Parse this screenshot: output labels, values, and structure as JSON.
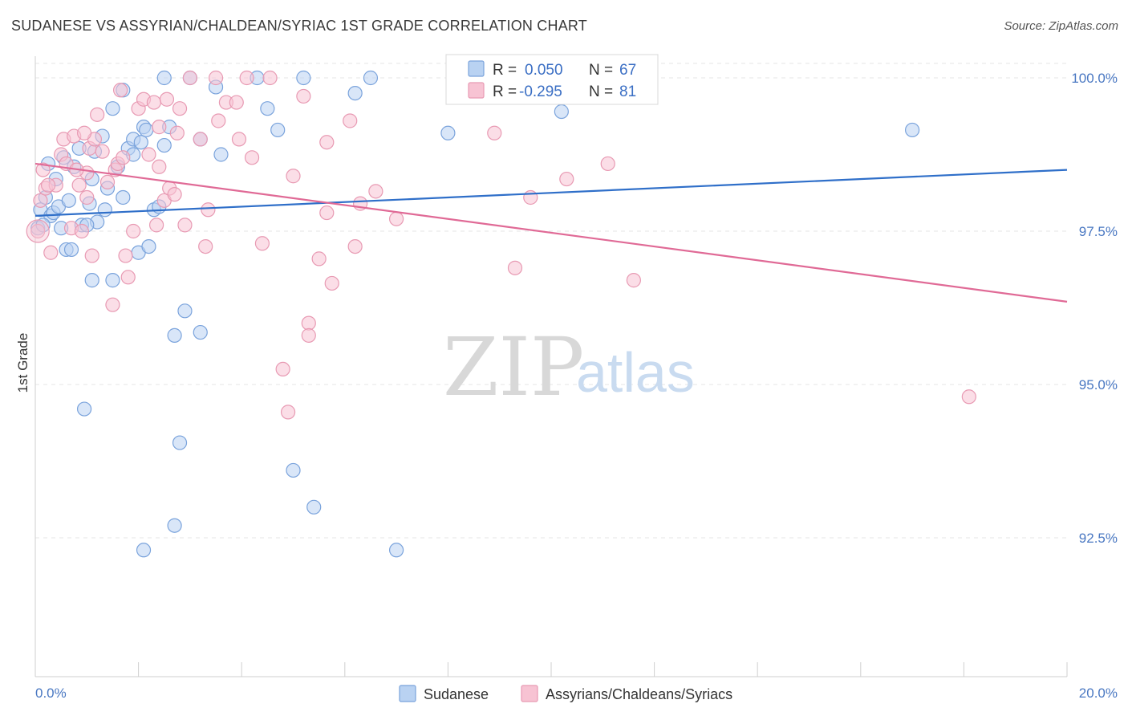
{
  "header": {
    "title": "SUDANESE VS ASSYRIAN/CHALDEAN/SYRIAC 1ST GRADE CORRELATION CHART",
    "source": "Source: ZipAtlas.com"
  },
  "watermark": {
    "zip": "ZIP",
    "atlas": "atlas"
  },
  "colors": {
    "blue_fill": "#b9d2f2",
    "blue_stroke": "#7aa3dc",
    "blue_line": "#2f6fc9",
    "pink_fill": "#f7c3d3",
    "pink_stroke": "#e89ab3",
    "pink_line": "#e06a96",
    "grid": "#e6e6e6",
    "axis_text": "#4a78c2"
  },
  "stats": {
    "blue": {
      "r_label": "R =",
      "r_value": "0.050",
      "n_label": "N =",
      "n_value": "67"
    },
    "pink": {
      "r_label": "R =",
      "r_value": "-0.295",
      "n_label": "N =",
      "n_value": "81"
    }
  },
  "chart_data": {
    "type": "scatter",
    "title": "SUDANESE VS ASSYRIAN/CHALDEAN/SYRIAC 1ST GRADE CORRELATION CHART",
    "xlabel": "",
    "ylabel": "1st Grade",
    "xlim": [
      0,
      20
    ],
    "ylim": [
      90.2,
      100.2
    ],
    "x_tick_labels": [
      "0.0%",
      "20.0%"
    ],
    "x_ticks": [
      0,
      20
    ],
    "y_ticks": [
      92.5,
      95.0,
      97.5,
      100.0
    ],
    "y_tick_labels": [
      "92.5%",
      "95.0%",
      "97.5%",
      "100.0%"
    ],
    "grid": true,
    "legend_position": "bottom-center",
    "series": [
      {
        "name": "Sudanese",
        "color": "#7aa3dc",
        "trend": [
          [
            0,
            97.75
          ],
          [
            20,
            98.5
          ]
        ],
        "points": [
          [
            0.05,
            97.55
          ],
          [
            0.1,
            97.85
          ],
          [
            0.2,
            98.05
          ],
          [
            0.25,
            98.6
          ],
          [
            0.3,
            97.75
          ],
          [
            0.4,
            98.35
          ],
          [
            0.5,
            97.55
          ],
          [
            0.55,
            98.7
          ],
          [
            0.6,
            97.2
          ],
          [
            0.7,
            97.2
          ],
          [
            0.75,
            98.55
          ],
          [
            0.85,
            98.85
          ],
          [
            0.9,
            97.6
          ],
          [
            1.05,
            97.95
          ],
          [
            1.1,
            98.35
          ],
          [
            1.2,
            97.65
          ],
          [
            1.3,
            99.05
          ],
          [
            1.35,
            97.85
          ],
          [
            1.5,
            99.5
          ],
          [
            1.6,
            98.55
          ],
          [
            1.7,
            99.8
          ],
          [
            1.7,
            98.05
          ],
          [
            1.8,
            98.85
          ],
          [
            1.9,
            99.0
          ],
          [
            1.9,
            98.75
          ],
          [
            2.0,
            97.15
          ],
          [
            2.05,
            98.95
          ],
          [
            2.1,
            99.2
          ],
          [
            2.15,
            99.15
          ],
          [
            2.2,
            97.25
          ],
          [
            2.3,
            97.85
          ],
          [
            2.5,
            100.0
          ],
          [
            2.5,
            98.9
          ],
          [
            2.6,
            99.2
          ],
          [
            3.0,
            100.0
          ],
          [
            3.2,
            99.0
          ],
          [
            3.5,
            99.85
          ],
          [
            3.6,
            98.75
          ],
          [
            4.3,
            100.0
          ],
          [
            4.5,
            99.5
          ],
          [
            4.7,
            99.15
          ],
          [
            5.2,
            100.0
          ],
          [
            6.2,
            99.75
          ],
          [
            6.5,
            100.0
          ],
          [
            8.0,
            99.1
          ],
          [
            10.2,
            99.45
          ],
          [
            17.0,
            99.15
          ],
          [
            1.1,
            96.7
          ],
          [
            1.5,
            96.7
          ],
          [
            2.9,
            96.2
          ],
          [
            2.7,
            95.8
          ],
          [
            3.2,
            95.85
          ],
          [
            0.95,
            94.6
          ],
          [
            2.8,
            94.05
          ],
          [
            5.0,
            93.6
          ],
          [
            5.4,
            93.0
          ],
          [
            2.7,
            92.7
          ],
          [
            2.1,
            92.3
          ],
          [
            7.0,
            92.3
          ],
          [
            0.15,
            97.6
          ],
          [
            0.35,
            97.8
          ],
          [
            0.45,
            97.9
          ],
          [
            0.65,
            98.0
          ],
          [
            1.0,
            97.6
          ],
          [
            1.4,
            98.2
          ],
          [
            2.4,
            97.9
          ],
          [
            1.15,
            98.8
          ]
        ]
      },
      {
        "name": "Assyrians/Chaldeans/Syriacs",
        "color": "#e89ab3",
        "trend": [
          [
            0,
            98.6
          ],
          [
            20,
            96.35
          ]
        ],
        "points": [
          [
            0.05,
            97.5
          ],
          [
            0.1,
            98.0
          ],
          [
            0.15,
            98.5
          ],
          [
            0.2,
            98.2
          ],
          [
            0.3,
            97.15
          ],
          [
            0.4,
            98.25
          ],
          [
            0.5,
            98.75
          ],
          [
            0.55,
            99.0
          ],
          [
            0.6,
            98.6
          ],
          [
            0.7,
            97.55
          ],
          [
            0.75,
            99.05
          ],
          [
            0.85,
            98.25
          ],
          [
            0.9,
            97.5
          ],
          [
            1.0,
            98.05
          ],
          [
            1.05,
            98.85
          ],
          [
            1.1,
            97.1
          ],
          [
            1.15,
            99.0
          ],
          [
            1.2,
            99.4
          ],
          [
            1.3,
            98.8
          ],
          [
            1.4,
            98.3
          ],
          [
            1.5,
            96.3
          ],
          [
            1.55,
            98.5
          ],
          [
            1.6,
            98.6
          ],
          [
            1.65,
            99.8
          ],
          [
            1.7,
            98.7
          ],
          [
            1.75,
            97.1
          ],
          [
            1.8,
            96.75
          ],
          [
            1.9,
            97.5
          ],
          [
            2.0,
            99.5
          ],
          [
            2.1,
            99.65
          ],
          [
            2.2,
            98.75
          ],
          [
            2.3,
            99.6
          ],
          [
            2.35,
            97.6
          ],
          [
            2.4,
            99.2
          ],
          [
            2.5,
            98.0
          ],
          [
            2.55,
            99.65
          ],
          [
            2.6,
            98.2
          ],
          [
            2.7,
            98.1
          ],
          [
            2.75,
            99.1
          ],
          [
            2.8,
            99.5
          ],
          [
            2.9,
            97.6
          ],
          [
            3.0,
            100.0
          ],
          [
            3.2,
            99.0
          ],
          [
            3.3,
            97.25
          ],
          [
            3.35,
            97.85
          ],
          [
            3.5,
            100.0
          ],
          [
            3.55,
            99.3
          ],
          [
            3.7,
            99.6
          ],
          [
            3.9,
            99.6
          ],
          [
            3.95,
            99.0
          ],
          [
            4.1,
            100.0
          ],
          [
            4.2,
            98.7
          ],
          [
            4.4,
            97.3
          ],
          [
            4.55,
            100.0
          ],
          [
            4.8,
            95.25
          ],
          [
            4.9,
            94.55
          ],
          [
            5.0,
            98.4
          ],
          [
            5.2,
            99.7
          ],
          [
            5.3,
            96.0
          ],
          [
            5.3,
            95.8
          ],
          [
            5.5,
            97.05
          ],
          [
            5.65,
            98.95
          ],
          [
            5.75,
            96.65
          ],
          [
            6.1,
            99.3
          ],
          [
            6.2,
            97.25
          ],
          [
            6.3,
            97.95
          ],
          [
            6.6,
            98.15
          ],
          [
            7.0,
            97.7
          ],
          [
            8.9,
            99.1
          ],
          [
            9.3,
            96.9
          ],
          [
            9.6,
            98.05
          ],
          [
            10.3,
            98.35
          ],
          [
            11.1,
            98.6
          ],
          [
            11.6,
            96.7
          ],
          [
            18.1,
            94.8
          ],
          [
            1.0,
            98.45
          ],
          [
            0.95,
            99.1
          ],
          [
            5.65,
            97.8
          ],
          [
            0.25,
            98.25
          ],
          [
            0.8,
            98.5
          ],
          [
            2.4,
            98.55
          ]
        ]
      }
    ]
  }
}
